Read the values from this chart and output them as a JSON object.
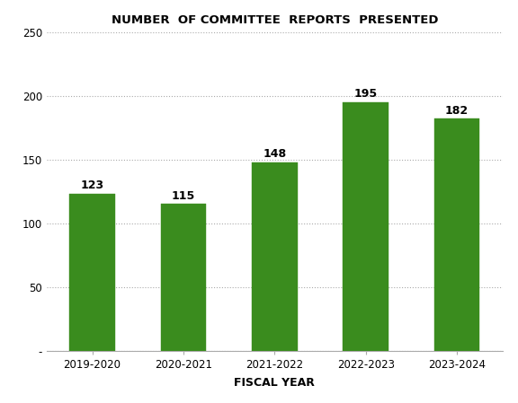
{
  "categories": [
    "2019-2020",
    "2020-2021",
    "2021-2022",
    "2022-2023",
    "2023-2024"
  ],
  "values": [
    123,
    115,
    148,
    195,
    182
  ],
  "bar_color": "#3a8c1e",
  "hatch_pattern": ".....",
  "title": "NUMBER  OF COMMITTEE  REPORTS  PRESENTED",
  "xlabel": "FISCAL YEAR",
  "ylim": [
    0,
    250
  ],
  "yticks": [
    0,
    50,
    100,
    150,
    200,
    250
  ],
  "ytick_labels": [
    "-",
    "50",
    "100",
    "150",
    "200",
    "250"
  ],
  "title_fontsize": 9.5,
  "xlabel_fontsize": 9,
  "bar_width": 0.5,
  "background_color": "#ffffff",
  "grid_color": "#aaaaaa",
  "annotation_fontsize": 9
}
